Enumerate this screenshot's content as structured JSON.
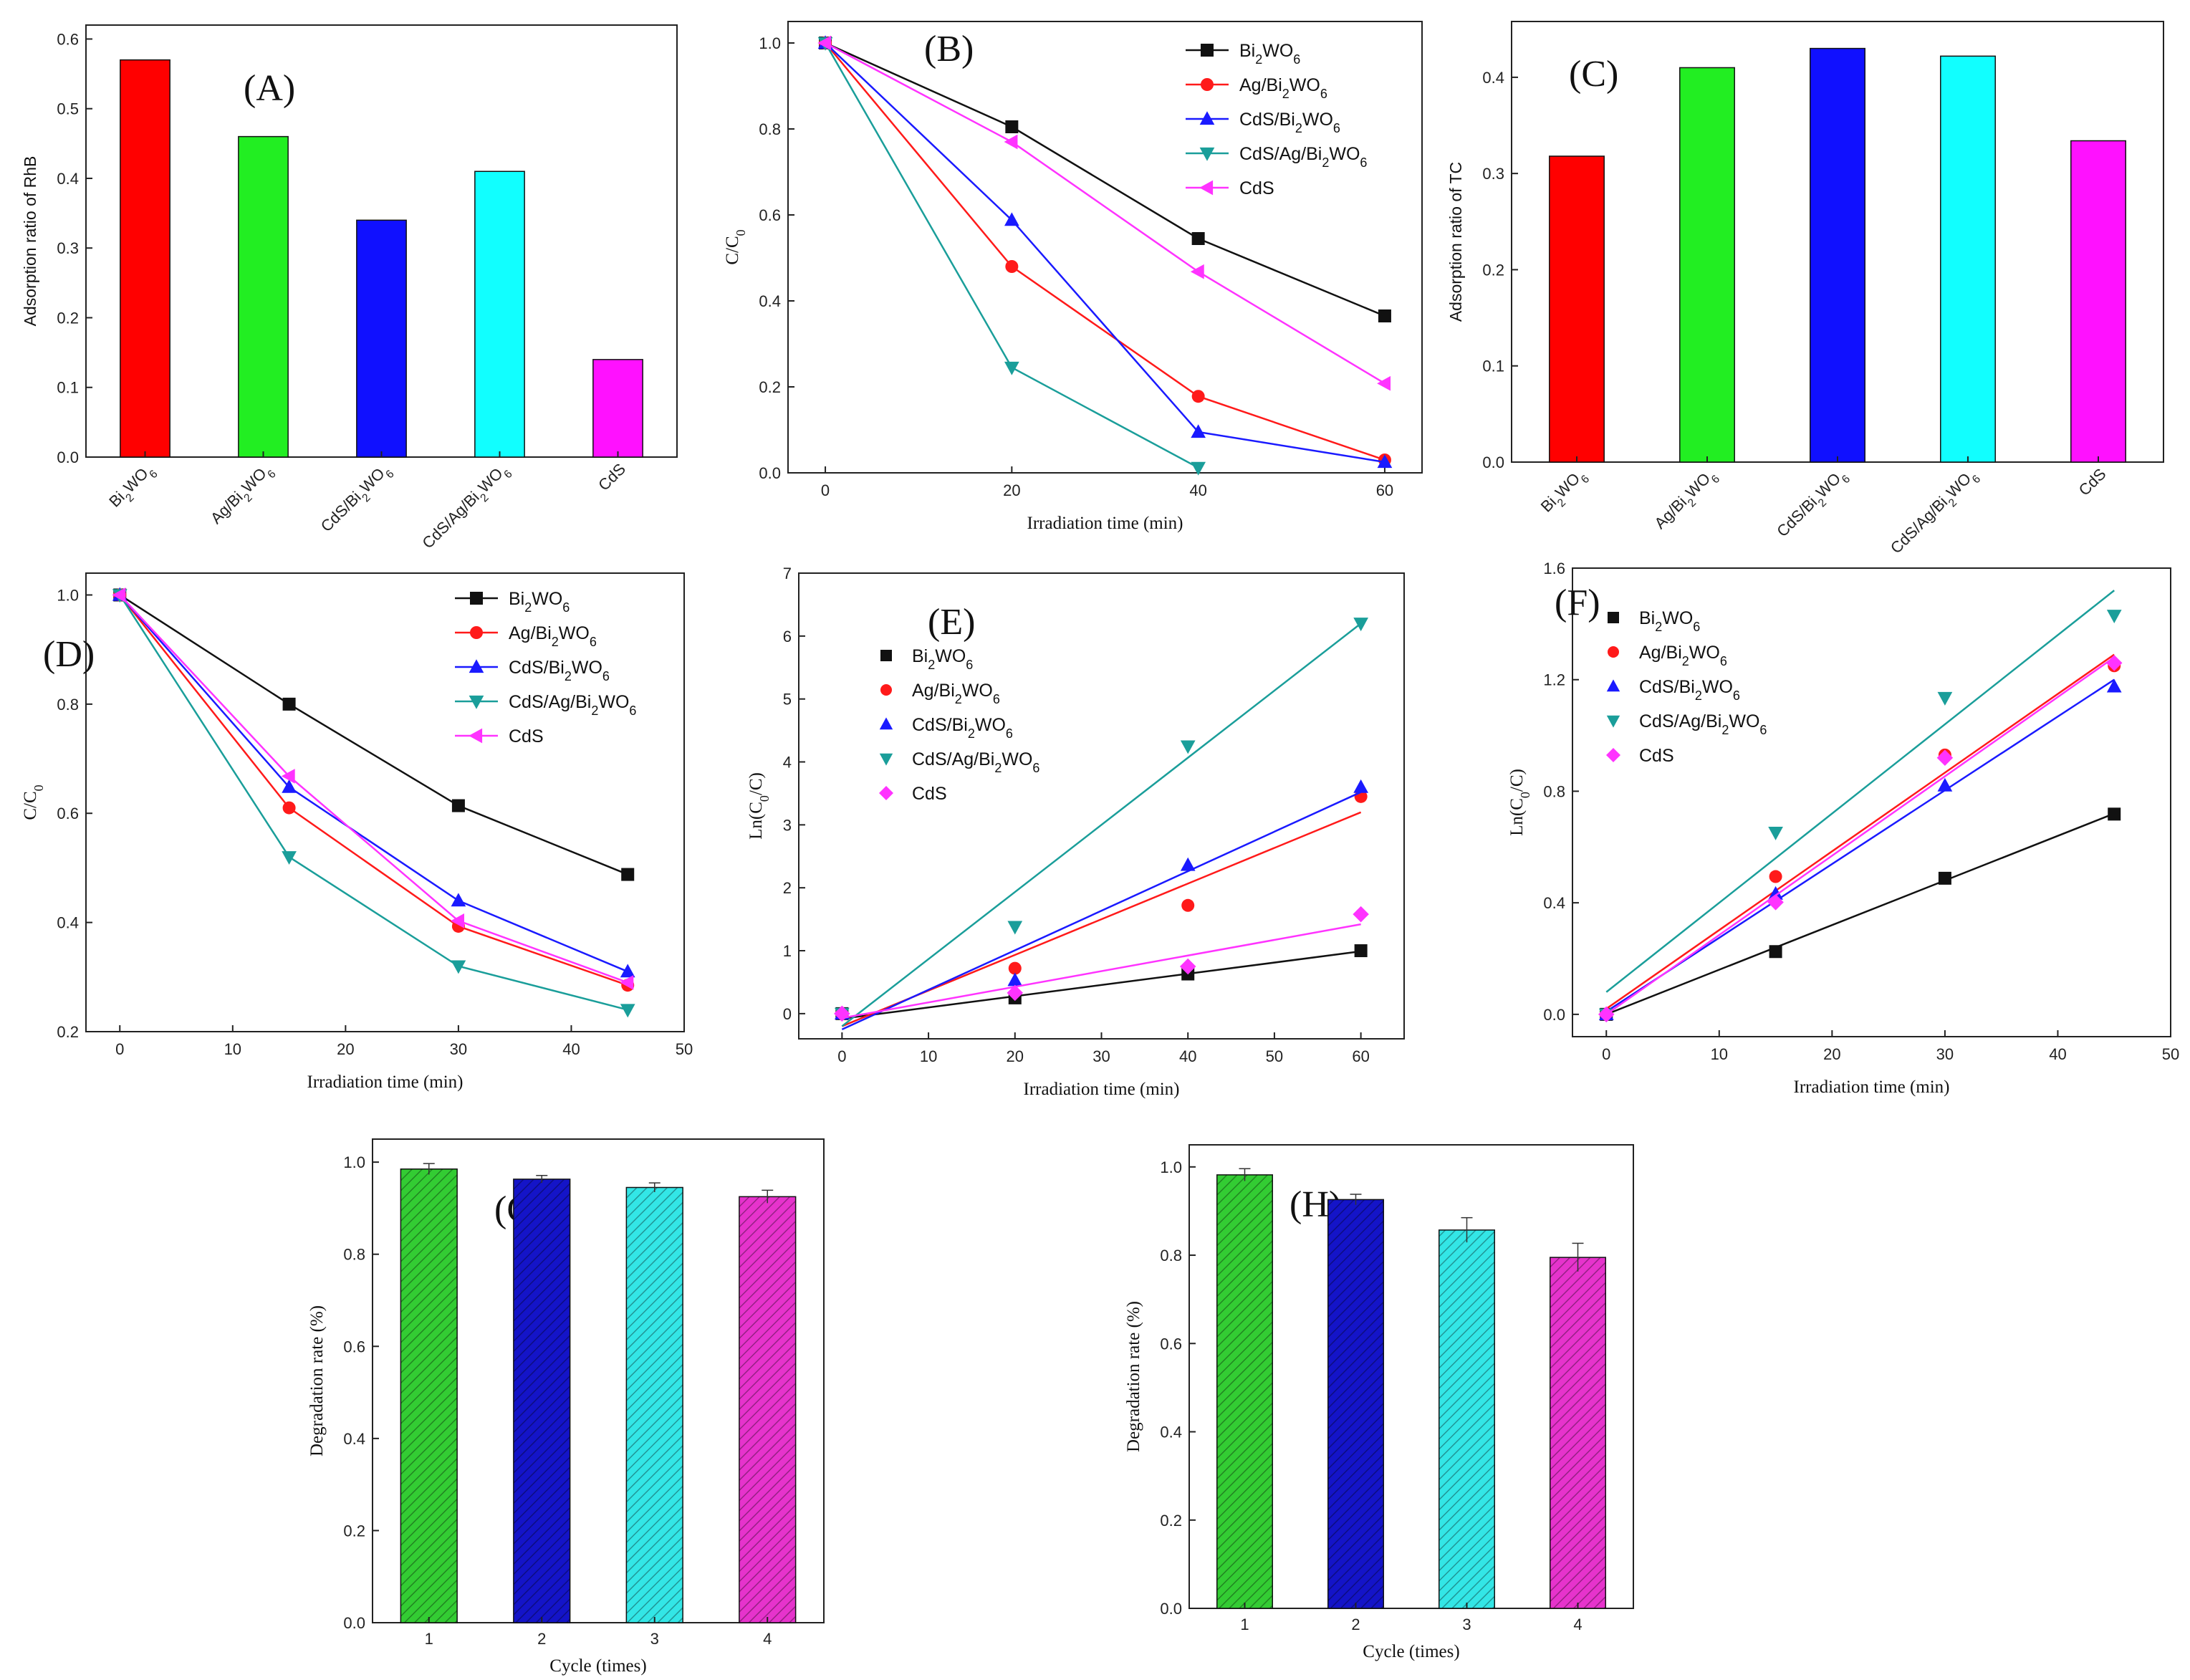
{
  "colors": {
    "Bi2WO6": "#111111",
    "Ag/Bi2WO6": "#ff1a1a",
    "CdS/Bi2WO6": "#1a1aff",
    "CdS/Ag/Bi2WO6": "#1a9e9a",
    "CdS": "#ff33ff",
    "bar_red": "#ff0000",
    "bar_green": "#22ee22",
    "bar_blue": "#1010ff",
    "bar_cyan": "#11ffff",
    "bar_magenta": "#ff11ff",
    "G_green": "#33cc33",
    "G_blue": "#1414c8",
    "G_cyan": "#33e6e6",
    "G_magenta": "#e633cc"
  },
  "chart_data": [
    {
      "id": "A",
      "panel_label": "(A)",
      "type": "bar",
      "categories": [
        "Bi2WO6",
        "Ag/Bi2WO6",
        "CdS/Bi2WO6",
        "CdS/Ag/Bi2WO6",
        "CdS"
      ],
      "values": [
        0.57,
        0.46,
        0.34,
        0.41,
        0.14
      ],
      "bar_colors": [
        "#ff0000",
        "#22ee22",
        "#1010ff",
        "#11ffff",
        "#ff11ff"
      ],
      "ylabel": "Adsorption ratio of RhB",
      "xlabel": "",
      "ylim": [
        0,
        0.62
      ],
      "yticks": [
        0.0,
        0.1,
        0.2,
        0.3,
        0.4,
        0.5,
        0.6
      ],
      "ydec": 1
    },
    {
      "id": "B",
      "panel_label": "(B)",
      "type": "line",
      "xlabel": "Irradiation time (min)",
      "ylabel": "C/C0",
      "xlim": [
        -4,
        64
      ],
      "ylim": [
        0,
        1.05
      ],
      "xticks": [
        0,
        20,
        40,
        60
      ],
      "yticks": [
        0.0,
        0.2,
        0.4,
        0.6,
        0.8,
        1.0
      ],
      "ydec": 1,
      "legend": "top-right",
      "series": [
        {
          "name": "Bi2WO6",
          "marker": "square",
          "x": [
            0,
            20,
            40,
            60
          ],
          "y": [
            1.0,
            0.805,
            0.545,
            0.365
          ]
        },
        {
          "name": "Ag/Bi2WO6",
          "marker": "circle",
          "x": [
            0,
            20,
            40,
            60
          ],
          "y": [
            1.0,
            0.48,
            0.178,
            0.03
          ]
        },
        {
          "name": "CdS/Bi2WO6",
          "marker": "tri-up",
          "x": [
            0,
            20,
            40,
            60
          ],
          "y": [
            1.0,
            0.588,
            0.095,
            0.025
          ]
        },
        {
          "name": "CdS/Ag/Bi2WO6",
          "marker": "tri-down",
          "x": [
            0,
            20,
            40
          ],
          "y": [
            1.0,
            0.245,
            0.012
          ]
        },
        {
          "name": "CdS",
          "marker": "tri-left",
          "x": [
            0,
            20,
            40,
            60
          ],
          "y": [
            1.0,
            0.77,
            0.468,
            0.208
          ]
        }
      ]
    },
    {
      "id": "C",
      "panel_label": "(C)",
      "type": "bar",
      "categories": [
        "Bi2WO6",
        "Ag/Bi2WO6",
        "CdS/Bi2WO6",
        "CdS/Ag/Bi2WO6",
        "CdS"
      ],
      "values": [
        0.318,
        0.41,
        0.43,
        0.422,
        0.334
      ],
      "bar_colors": [
        "#ff0000",
        "#22ee22",
        "#1010ff",
        "#11ffff",
        "#ff11ff"
      ],
      "ylabel": "Adsorption ratio of TC",
      "xlabel": "",
      "ylim": [
        0,
        0.458
      ],
      "yticks": [
        0.0,
        0.1,
        0.2,
        0.3,
        0.4
      ],
      "ydec": 1
    },
    {
      "id": "D",
      "panel_label": "(D)",
      "type": "line",
      "xlabel": "Irradiation time (min)",
      "ylabel": "C/C0",
      "xlim": [
        -3,
        50
      ],
      "ylim": [
        0.2,
        1.04
      ],
      "xticks": [
        0,
        10,
        20,
        30,
        40,
        50
      ],
      "yticks": [
        0.2,
        0.4,
        0.6,
        0.8,
        1.0
      ],
      "ydec": 1,
      "legend": "top-right",
      "series": [
        {
          "name": "Bi2WO6",
          "marker": "square",
          "x": [
            0,
            15,
            30,
            45
          ],
          "y": [
            1.0,
            0.8,
            0.614,
            0.488
          ]
        },
        {
          "name": "Ag/Bi2WO6",
          "marker": "circle",
          "x": [
            0,
            15,
            30,
            45
          ],
          "y": [
            1.0,
            0.61,
            0.393,
            0.285
          ]
        },
        {
          "name": "CdS/Bi2WO6",
          "marker": "tri-up",
          "x": [
            0,
            15,
            30,
            45
          ],
          "y": [
            1.0,
            0.648,
            0.44,
            0.31
          ]
        },
        {
          "name": "CdS/Ag/Bi2WO6",
          "marker": "tri-down",
          "x": [
            0,
            15,
            30,
            45
          ],
          "y": [
            1.0,
            0.52,
            0.32,
            0.24
          ]
        },
        {
          "name": "CdS",
          "marker": "tri-left",
          "x": [
            0,
            15,
            30,
            45
          ],
          "y": [
            1.0,
            0.668,
            0.403,
            0.29
          ]
        }
      ]
    },
    {
      "id": "E",
      "panel_label": "(E)",
      "type": "scatter",
      "xlabel": "Irradiation time (min)",
      "ylabel": "Ln(C0/C)",
      "xlim": [
        -5,
        65
      ],
      "ylim": [
        -0.4,
        7
      ],
      "xticks": [
        0,
        10,
        20,
        30,
        40,
        50,
        60
      ],
      "yticks": [
        0,
        1,
        2,
        3,
        4,
        5,
        6,
        7
      ],
      "ydec": 0,
      "legend": "top-left",
      "series": [
        {
          "name": "Bi2WO6",
          "marker": "square",
          "x": [
            0,
            20,
            40,
            60
          ],
          "y": [
            0.0,
            0.25,
            0.63,
            1.0
          ],
          "fit": [
            [
              0,
              -0.08
            ],
            [
              60,
              0.99
            ]
          ]
        },
        {
          "name": "Ag/Bi2WO6",
          "marker": "circle",
          "x": [
            0,
            20,
            40,
            60
          ],
          "y": [
            0.0,
            0.72,
            1.72,
            3.45
          ],
          "fit": [
            [
              0,
              -0.2
            ],
            [
              60,
              3.2
            ]
          ]
        },
        {
          "name": "CdS/Bi2WO6",
          "marker": "tri-up",
          "x": [
            0,
            20,
            40,
            60
          ],
          "y": [
            0.0,
            0.53,
            2.36,
            3.6
          ],
          "fit": [
            [
              0,
              -0.25
            ],
            [
              60,
              3.52
            ]
          ]
        },
        {
          "name": "CdS/Ag/Bi2WO6",
          "marker": "tri-down",
          "x": [
            0,
            20,
            40,
            60
          ],
          "y": [
            0.0,
            1.38,
            4.25,
            6.2
          ],
          "fit": [
            [
              0,
              -0.2
            ],
            [
              60,
              6.2
            ]
          ]
        },
        {
          "name": "CdS",
          "marker": "diamond",
          "x": [
            0,
            20,
            40,
            60
          ],
          "y": [
            0.0,
            0.33,
            0.75,
            1.58
          ],
          "fit": [
            [
              0,
              -0.07
            ],
            [
              60,
              1.42
            ]
          ]
        }
      ]
    },
    {
      "id": "F",
      "panel_label": "(F)",
      "type": "scatter",
      "xlabel": "Irradiation time (min)",
      "ylabel": "Ln(C0/C)",
      "xlim": [
        -3,
        50
      ],
      "ylim": [
        -0.08,
        1.6
      ],
      "xticks": [
        0,
        10,
        20,
        30,
        40,
        50
      ],
      "yticks": [
        0.0,
        0.4,
        0.8,
        1.2,
        1.6
      ],
      "ydec": 1,
      "legend": "top-left",
      "series": [
        {
          "name": "Bi2WO6",
          "marker": "square",
          "x": [
            0,
            15,
            30,
            45
          ],
          "y": [
            0.0,
            0.225,
            0.488,
            0.718
          ],
          "fit": [
            [
              0,
              0.0
            ],
            [
              45,
              0.72
            ]
          ]
        },
        {
          "name": "Ag/Bi2WO6",
          "marker": "circle",
          "x": [
            0,
            15,
            30,
            45
          ],
          "y": [
            0.0,
            0.494,
            0.93,
            1.25
          ],
          "fit": [
            [
              0,
              0.02
            ],
            [
              45,
              1.29
            ]
          ]
        },
        {
          "name": "CdS/Bi2WO6",
          "marker": "tri-up",
          "x": [
            0,
            15,
            30,
            45
          ],
          "y": [
            0.0,
            0.432,
            0.82,
            1.175
          ],
          "fit": [
            [
              0,
              0.01
            ],
            [
              45,
              1.2
            ]
          ]
        },
        {
          "name": "CdS/Ag/Bi2WO6",
          "marker": "tri-down",
          "x": [
            0,
            15,
            30,
            45
          ],
          "y": [
            0.0,
            0.652,
            1.135,
            1.43
          ],
          "fit": [
            [
              0,
              0.08
            ],
            [
              45,
              1.52
            ]
          ]
        },
        {
          "name": "CdS",
          "marker": "diamond",
          "x": [
            0,
            15,
            30,
            45
          ],
          "y": [
            0.0,
            0.402,
            0.92,
            1.26
          ],
          "fit": [
            [
              0,
              0.0
            ],
            [
              45,
              1.28
            ]
          ]
        }
      ]
    },
    {
      "id": "G",
      "panel_label": "(G)",
      "type": "bar",
      "categories": [
        "1",
        "2",
        "3",
        "4"
      ],
      "values": [
        0.985,
        0.963,
        0.945,
        0.925
      ],
      "errors": [
        0.012,
        0.008,
        0.01,
        0.014
      ],
      "bar_colors": [
        "#33cc33",
        "#1414c8",
        "#33e6e6",
        "#e633cc"
      ],
      "hatched": true,
      "xlabel": "Cycle (times)",
      "ylabel": "Degradation rate (%)",
      "ylim": [
        0,
        1.05
      ],
      "yticks": [
        0.0,
        0.2,
        0.4,
        0.6,
        0.8,
        1.0
      ],
      "ydec": 1
    },
    {
      "id": "H",
      "panel_label": "(H)",
      "type": "bar",
      "categories": [
        "1",
        "2",
        "3",
        "4"
      ],
      "values": [
        0.982,
        0.926,
        0.857,
        0.795
      ],
      "errors": [
        0.014,
        0.012,
        0.028,
        0.032
      ],
      "bar_colors": [
        "#33cc33",
        "#1414c8",
        "#33e6e6",
        "#e633cc"
      ],
      "hatched": true,
      "xlabel": "Cycle (times)",
      "ylabel": "Degradation rate (%)",
      "ylim": [
        0,
        1.05
      ],
      "yticks": [
        0.0,
        0.2,
        0.4,
        0.6,
        0.8,
        1.0
      ],
      "ydec": 1
    }
  ]
}
